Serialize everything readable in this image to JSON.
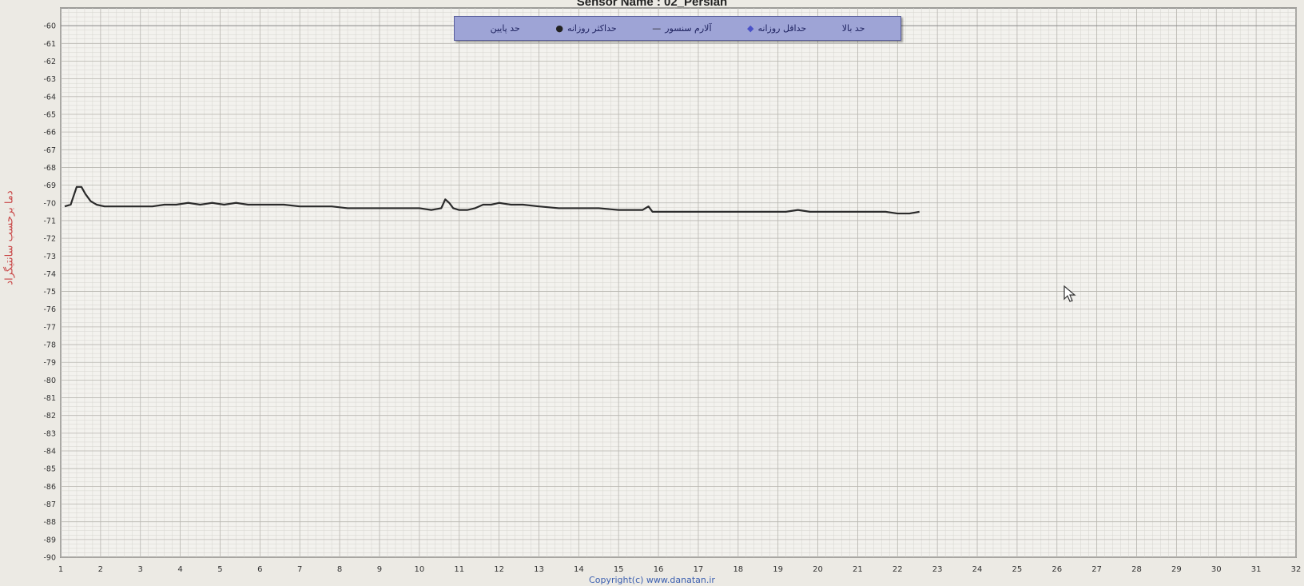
{
  "page": {
    "title": "Sensor Name : 02_Persian",
    "footer": "Copyright(c) www.danatan.ir"
  },
  "legend": [
    {
      "label": "حد بالا",
      "symbol": ""
    },
    {
      "label": "حداقل روزانه",
      "symbol": "◆"
    },
    {
      "label": "آلارم سنسور",
      "symbol": "—"
    },
    {
      "label": "حداکثر روزانه",
      "symbol": "●"
    },
    {
      "label": "حد پایین",
      "symbol": ""
    }
  ],
  "chart_data": {
    "type": "line",
    "title": "Sensor Name : 02_Persian",
    "xlabel": "",
    "ylabel": "دما برحسب سانتیگراد",
    "xlim": [
      1,
      32
    ],
    "ylim": [
      -90,
      -59
    ],
    "x_ticks": [
      1,
      2,
      3,
      4,
      5,
      6,
      7,
      8,
      9,
      10,
      11,
      12,
      13,
      14,
      15,
      16,
      17,
      18,
      19,
      20,
      21,
      22,
      23,
      24,
      25,
      26,
      27,
      28,
      29,
      30,
      31,
      32
    ],
    "y_ticks": [
      -60,
      -61,
      -62,
      -63,
      -64,
      -65,
      -66,
      -67,
      -68,
      -69,
      -70,
      -71,
      -72,
      -73,
      -74,
      -75,
      -76,
      -77,
      -78,
      -79,
      -80,
      -81,
      -82,
      -83,
      -84,
      -85,
      -86,
      -87,
      -88,
      -89,
      -90
    ],
    "grid": true,
    "legend_position": "top-center",
    "colors": {
      "line": "#2b2b2b",
      "legend_bg": "#9ea4d6",
      "ylabel": "#c94848",
      "upper_limit": "#8a8a8a"
    },
    "upper_limit": -60,
    "series": [
      {
        "name": "آلارم سنسور",
        "x": [
          1.1,
          1.25,
          1.4,
          1.52,
          1.62,
          1.75,
          1.9,
          2.1,
          2.3,
          2.6,
          3.0,
          3.3,
          3.6,
          3.9,
          4.2,
          4.5,
          4.8,
          5.1,
          5.4,
          5.7,
          6.0,
          6.3,
          6.6,
          7.0,
          7.4,
          7.8,
          8.2,
          8.6,
          9.0,
          9.5,
          10.0,
          10.3,
          10.55,
          10.65,
          10.75,
          10.85,
          11.0,
          11.2,
          11.4,
          11.6,
          11.8,
          12.0,
          12.3,
          12.6,
          13.0,
          13.5,
          14.0,
          14.5,
          15.0,
          15.3,
          15.6,
          15.75,
          15.85,
          16.2,
          16.7,
          17.2,
          17.7,
          18.2,
          18.7,
          19.2,
          19.5,
          19.8,
          20.2,
          20.7,
          21.2,
          21.7,
          22.0,
          22.3,
          22.55
        ],
        "values": [
          -70.2,
          -70.1,
          -69.1,
          -69.1,
          -69.5,
          -69.9,
          -70.1,
          -70.2,
          -70.2,
          -70.2,
          -70.2,
          -70.2,
          -70.1,
          -70.1,
          -70.0,
          -70.1,
          -70.0,
          -70.1,
          -70.0,
          -70.1,
          -70.1,
          -70.1,
          -70.1,
          -70.2,
          -70.2,
          -70.2,
          -70.3,
          -70.3,
          -70.3,
          -70.3,
          -70.3,
          -70.4,
          -70.3,
          -69.8,
          -70.0,
          -70.3,
          -70.4,
          -70.4,
          -70.3,
          -70.1,
          -70.1,
          -70.0,
          -70.1,
          -70.1,
          -70.2,
          -70.3,
          -70.3,
          -70.3,
          -70.4,
          -70.4,
          -70.4,
          -70.2,
          -70.5,
          -70.5,
          -70.5,
          -70.5,
          -70.5,
          -70.5,
          -70.5,
          -70.5,
          -70.4,
          -70.5,
          -70.5,
          -70.5,
          -70.5,
          -70.5,
          -70.6,
          -70.6,
          -70.5
        ]
      }
    ]
  }
}
